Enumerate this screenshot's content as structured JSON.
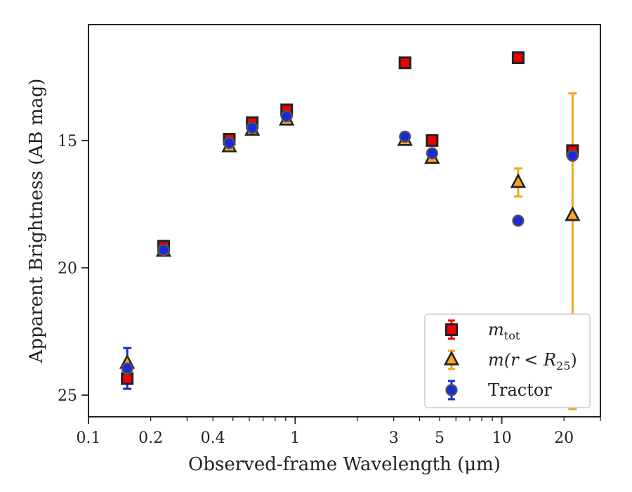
{
  "chart_data": {
    "type": "scatter",
    "xlabel": "Observed-frame Wavelength (μm)",
    "ylabel": "Apparent Brightness (AB mag)",
    "xscale": "log",
    "xlim": [
      0.1,
      30
    ],
    "ylim": [
      25.85,
      10.45
    ],
    "y_inverted": true,
    "x_ticks": [
      0.1,
      0.2,
      0.4,
      1,
      3,
      5,
      10,
      20
    ],
    "x_tick_labels": [
      "0.1",
      "0.2",
      "0.4",
      "1",
      "3",
      "5",
      "10",
      "20"
    ],
    "y_ticks": [
      15,
      20,
      25
    ],
    "y_tick_labels": [
      "15",
      "20",
      "25"
    ],
    "grid": false,
    "legend_position": "lower-right",
    "legend": [
      {
        "label_main": "m",
        "label_sub": "tot"
      },
      {
        "label_main": "m(r < R",
        "label_sub": "25",
        "label_end": ")"
      },
      {
        "label_main": "Tractor",
        "label_sub": "",
        "label_end": ""
      }
    ],
    "series": [
      {
        "marker": "square",
        "face": "#ee0000",
        "edge": "#222222",
        "errcolor": "#ee0000",
        "points": [
          {
            "x": 0.154,
            "y": 24.35
          },
          {
            "x": 0.231,
            "y": 19.15
          },
          {
            "x": 0.48,
            "y": 14.95
          },
          {
            "x": 0.62,
            "y": 14.3
          },
          {
            "x": 0.91,
            "y": 13.8
          },
          {
            "x": 3.4,
            "y": 11.95
          },
          {
            "x": 4.6,
            "y": 15.0
          },
          {
            "x": 12.0,
            "y": 11.75
          },
          {
            "x": 22.0,
            "y": 15.4
          }
        ]
      },
      {
        "marker": "triangle",
        "face": "#f5a623",
        "edge": "#222222",
        "errcolor": "#f5a623",
        "points": [
          {
            "x": 0.154,
            "y": 23.75
          },
          {
            "x": 0.231,
            "y": 19.35
          },
          {
            "x": 0.48,
            "y": 15.25
          },
          {
            "x": 0.62,
            "y": 14.6
          },
          {
            "x": 0.91,
            "y": 14.2
          },
          {
            "x": 3.4,
            "y": 15.0
          },
          {
            "x": 4.6,
            "y": 15.7
          },
          {
            "x": 12.0,
            "y": 16.65,
            "err": 0.55
          },
          {
            "x": 22.0,
            "y": 17.95,
            "err_up": 4.8,
            "err_down": 7.6
          }
        ]
      },
      {
        "marker": "circle",
        "face": "#1a2bd6",
        "edge": "#555555",
        "errcolor": "#1a2bd6",
        "points": [
          {
            "x": 0.154,
            "y": 23.95,
            "err": 0.8
          },
          {
            "x": 0.231,
            "y": 19.3
          },
          {
            "x": 0.48,
            "y": 15.1
          },
          {
            "x": 0.62,
            "y": 14.5
          },
          {
            "x": 0.91,
            "y": 14.05
          },
          {
            "x": 3.4,
            "y": 14.85
          },
          {
            "x": 4.6,
            "y": 15.5
          },
          {
            "x": 12.0,
            "y": 18.15
          },
          {
            "x": 22.0,
            "y": 15.6
          }
        ]
      }
    ]
  }
}
